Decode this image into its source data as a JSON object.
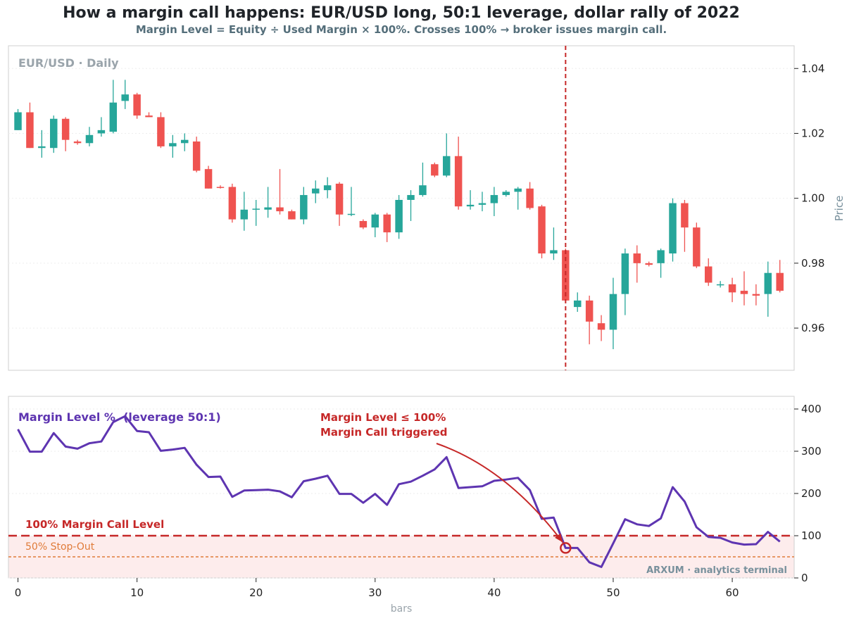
{
  "title": "How a margin call happens: EUR/USD long, 50:1 leverage, dollar rally of 2022",
  "subtitle": "Margin Level = Equity ÷ Used Margin × 100%.  Crosses 100% → broker issues margin call.",
  "colors": {
    "up": "#26a69a",
    "down": "#ef5350",
    "margin_line": "#5e35b1",
    "call": "#c62828",
    "stopout": "#e07b39",
    "watermark": "#78909c"
  },
  "chart_data": [
    {
      "type": "candlestick",
      "corner_label": "EUR/USD · Daily",
      "ylabel": "Price",
      "ylim": [
        0.947,
        1.047
      ],
      "yticks": [
        0.96,
        0.98,
        1.0,
        1.02,
        1.04
      ],
      "xlim": [
        -0.8,
        65.2
      ],
      "grid": true,
      "event_line_x": 46,
      "ohlc": [
        [
          1.021,
          1.0275,
          1.021,
          1.0265
        ],
        [
          1.0265,
          1.0295,
          1.0155,
          1.0155
        ],
        [
          1.0155,
          1.021,
          1.0125,
          1.016
        ],
        [
          1.0155,
          1.0255,
          1.014,
          1.0245
        ],
        [
          1.0245,
          1.025,
          1.0145,
          1.018
        ],
        [
          1.0175,
          1.018,
          1.0165,
          1.017
        ],
        [
          1.017,
          1.022,
          1.016,
          1.0195
        ],
        [
          1.02,
          1.025,
          1.019,
          1.021
        ],
        [
          1.0205,
          1.0365,
          1.02,
          1.0295
        ],
        [
          1.03,
          1.0365,
          1.0275,
          1.032
        ],
        [
          1.032,
          1.0325,
          1.0245,
          1.0255
        ],
        [
          1.0255,
          1.0265,
          1.025,
          1.025
        ],
        [
          1.025,
          1.0265,
          1.0155,
          1.016
        ],
        [
          1.016,
          1.0195,
          1.0125,
          1.017
        ],
        [
          1.017,
          1.02,
          1.0145,
          1.018
        ],
        [
          1.0175,
          1.019,
          1.008,
          1.0085
        ],
        [
          1.009,
          1.01,
          1.003,
          1.003
        ],
        [
          1.0035,
          1.004,
          1.003,
          1.0032
        ],
        [
          1.0035,
          1.0045,
          0.9925,
          0.9935
        ],
        [
          0.9935,
          1.002,
          0.99,
          0.9965
        ],
        [
          0.9965,
          0.9995,
          0.9915,
          0.9968
        ],
        [
          0.9965,
          1.0035,
          0.994,
          0.9972
        ],
        [
          0.9972,
          1.009,
          0.995,
          0.996
        ],
        [
          0.996,
          0.9965,
          0.9935,
          0.9935
        ],
        [
          0.9935,
          1.0035,
          0.992,
          1.001
        ],
        [
          1.0015,
          1.0055,
          0.9985,
          1.003
        ],
        [
          1.0025,
          1.0065,
          1.0,
          1.004
        ],
        [
          1.0045,
          1.005,
          0.9915,
          0.995
        ],
        [
          0.995,
          1.0035,
          0.9945,
          0.9952
        ],
        [
          0.993,
          0.9935,
          0.9905,
          0.991
        ],
        [
          0.991,
          0.9955,
          0.988,
          0.995
        ],
        [
          0.995,
          0.9955,
          0.9865,
          0.9895
        ],
        [
          0.9895,
          1.001,
          0.9875,
          0.9995
        ],
        [
          0.9995,
          1.0025,
          0.993,
          1.001
        ],
        [
          1.001,
          1.011,
          1.0005,
          1.004
        ],
        [
          1.0105,
          1.011,
          1.0065,
          1.007
        ],
        [
          1.007,
          1.02,
          1.0065,
          1.013
        ],
        [
          1.013,
          1.019,
          0.9965,
          0.9975
        ],
        [
          0.9975,
          1.0025,
          0.9965,
          0.998
        ],
        [
          0.998,
          1.002,
          0.996,
          0.9985
        ],
        [
          0.9985,
          1.0035,
          0.9945,
          1.001
        ],
        [
          1.001,
          1.0025,
          1.0005,
          1.002
        ],
        [
          1.002,
          1.0035,
          0.9965,
          1.003
        ],
        [
          1.003,
          1.005,
          0.9965,
          0.997
        ],
        [
          0.9975,
          0.998,
          0.9815,
          0.983
        ],
        [
          0.983,
          0.991,
          0.981,
          0.984
        ],
        [
          0.984,
          0.9845,
          0.9685,
          0.9685
        ],
        [
          0.9665,
          0.971,
          0.965,
          0.9685
        ],
        [
          0.9685,
          0.97,
          0.955,
          0.962
        ],
        [
          0.9615,
          0.964,
          0.956,
          0.9595
        ],
        [
          0.9595,
          0.9755,
          0.9535,
          0.9705
        ],
        [
          0.9705,
          0.9845,
          0.964,
          0.983
        ],
        [
          0.983,
          0.9855,
          0.974,
          0.98
        ],
        [
          0.98,
          0.9805,
          0.979,
          0.9795
        ],
        [
          0.98,
          0.9845,
          0.9755,
          0.984
        ],
        [
          0.983,
          1.0,
          0.9805,
          0.9985
        ],
        [
          0.9985,
          0.9995,
          0.9835,
          0.991
        ],
        [
          0.991,
          0.9925,
          0.9785,
          0.979
        ],
        [
          0.979,
          0.9815,
          0.973,
          0.974
        ],
        [
          0.9735,
          0.9745,
          0.9725,
          0.9735
        ],
        [
          0.9735,
          0.9755,
          0.968,
          0.971
        ],
        [
          0.9715,
          0.9775,
          0.967,
          0.9705
        ],
        [
          0.9705,
          0.9735,
          0.967,
          0.97
        ],
        [
          0.9705,
          0.9805,
          0.9635,
          0.977
        ],
        [
          0.977,
          0.981,
          0.971,
          0.9715
        ]
      ]
    },
    {
      "type": "line",
      "xlabel": "bars",
      "ylim": [
        0,
        430
      ],
      "yticks": [
        0,
        100,
        200,
        300,
        400
      ],
      "xticks": [
        0,
        10,
        20,
        30,
        40,
        50,
        60
      ],
      "xlim": [
        -0.8,
        65.2
      ],
      "series": [
        {
          "name": "Margin Level %  (leverage 50:1)",
          "values": [
            352,
            299,
            299,
            343,
            311,
            306,
            319,
            323,
            369,
            383,
            348,
            345,
            301,
            304,
            308,
            268,
            239,
            240,
            192,
            207,
            208,
            209,
            205,
            191,
            229,
            235,
            242,
            199,
            199,
            178,
            199,
            173,
            222,
            228,
            242,
            257,
            286,
            213,
            215,
            217,
            230,
            233,
            237,
            208,
            140,
            143,
            71,
            71,
            37,
            26,
            82,
            139,
            127,
            123,
            141,
            215,
            181,
            120,
            97,
            95,
            84,
            79,
            80,
            109,
            86
          ]
        }
      ],
      "reference_lines": [
        {
          "value": 100,
          "label": "100%  Margin Call Level"
        },
        {
          "value": 50,
          "label": "50%  Stop-Out"
        }
      ],
      "annotation": {
        "x": 46,
        "y": 71,
        "text_lines": [
          "Margin Level ≤ 100%",
          "Margin Call triggered"
        ]
      },
      "watermark": "ARXUM · analytics terminal"
    }
  ]
}
